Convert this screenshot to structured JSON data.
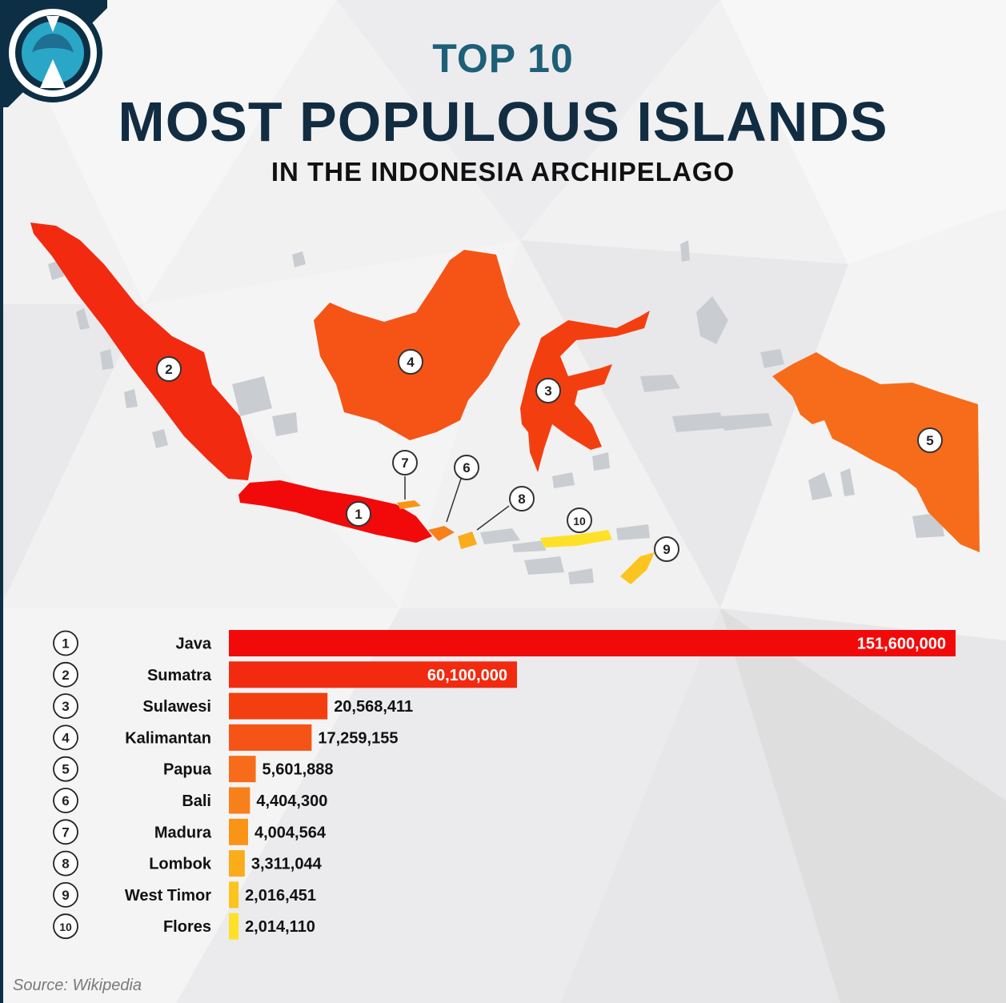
{
  "header": {
    "top_label": "TOP 10",
    "title": "MOST POPULOUS ISLANDS",
    "subtitle": "IN THE INDONESIA ARCHIPELAGO"
  },
  "source": "Source: Wikipedia",
  "colors": {
    "rank_1": "#f20a0a",
    "rank_2": "#f22a10",
    "rank_3": "#f33f10",
    "rank_4": "#f55416",
    "rank_5": "#f76c1a",
    "rank_6": "#f8801b",
    "rank_7": "#fa9417",
    "rank_8": "#fbac1a",
    "rank_9": "#fcc41e",
    "rank_10": "#fde128",
    "map_land": "#c9cdd1",
    "title_dark": "#122d42",
    "title_accent": "#1e5f78"
  },
  "map": {
    "markers": [
      "1",
      "2",
      "3",
      "4",
      "5",
      "6",
      "7",
      "8",
      "9",
      "10"
    ]
  },
  "chart_data": {
    "type": "bar",
    "orientation": "horizontal",
    "ranks": [
      "1",
      "2",
      "3",
      "4",
      "5",
      "6",
      "7",
      "8",
      "9",
      "10"
    ],
    "categories": [
      "Java",
      "Sumatra",
      "Sulawesi",
      "Kalimantan",
      "Papua",
      "Bali",
      "Madura",
      "Lombok",
      "West Timor",
      "Flores"
    ],
    "values": [
      151600000,
      60100000,
      20568411,
      17259155,
      5601888,
      4404300,
      4004564,
      3311044,
      2016451,
      2014110
    ],
    "value_labels": [
      "151,600,000",
      "60,100,000",
      "20,568,411",
      "17,259,155",
      "5,601,888",
      "4,404,300",
      "4,004,564",
      "3,311,044",
      "2,016,451",
      "2,014,110"
    ],
    "xlim": [
      0,
      151600000
    ],
    "grid": false,
    "legend": "none"
  }
}
